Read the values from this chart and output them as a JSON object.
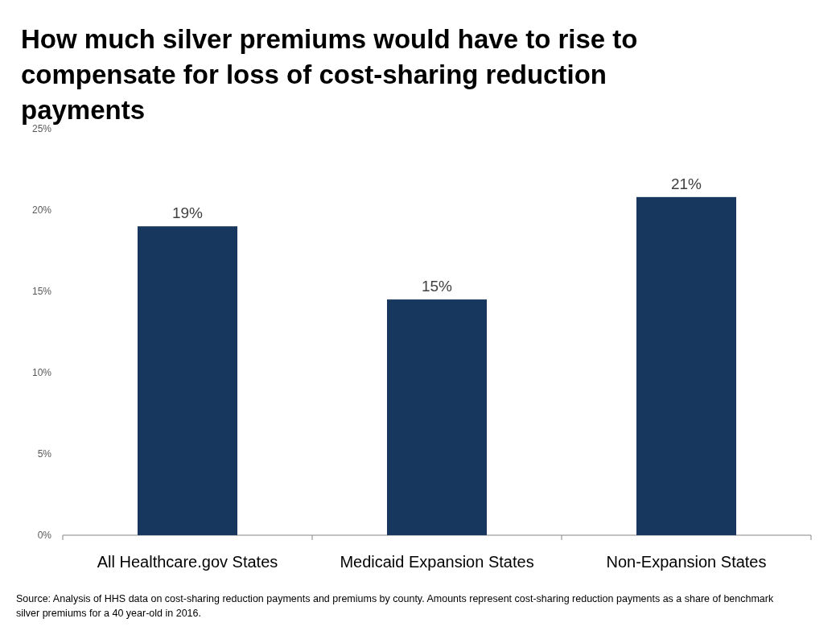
{
  "chart_data": {
    "type": "bar",
    "title": "How much silver premiums would have to rise to compensate for loss of cost-sharing reduction payments",
    "categories": [
      "All Healthcare.gov States",
      "Medicaid Expansion States",
      "Non-Expansion States"
    ],
    "values": [
      19,
      14.5,
      20.8
    ],
    "color": "#17375e",
    "value_labels": [
      "19%",
      "15%",
      "21%"
    ],
    "ylim": [
      0,
      25
    ],
    "yticks": [
      {
        "value": 0,
        "label": "0%"
      },
      {
        "value": 5,
        "label": "5%"
      },
      {
        "value": 10,
        "label": "10%"
      },
      {
        "value": 15,
        "label": "15%"
      },
      {
        "value": 20,
        "label": "20%"
      },
      {
        "value": 25,
        "label": "25%"
      }
    ],
    "annotations": [
      "Source: Analysis of HHS data on cost-sharing reduction payments and premiums by county. Amounts represent cost-sharing reduction payments as a share of benchmark silver premiums for a 40 year-old in 2016."
    ]
  }
}
